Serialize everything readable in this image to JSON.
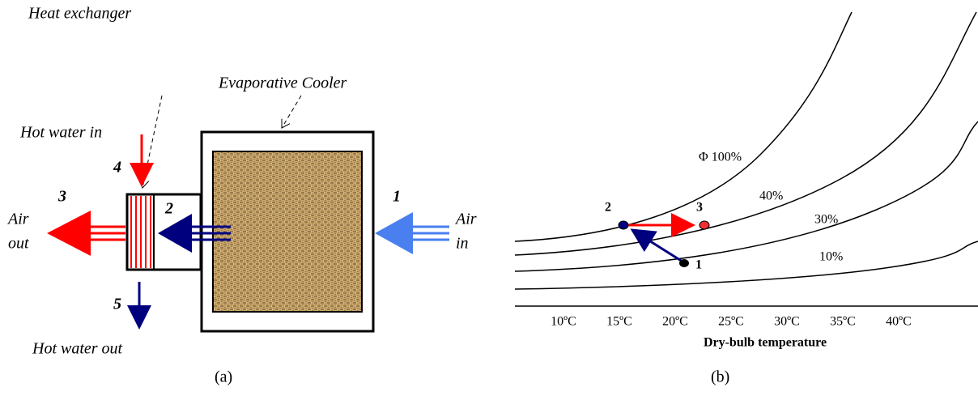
{
  "panel_a": {
    "heat_exchanger_label": "Heat exchanger",
    "cooler_label": "Evaporative Cooler",
    "hot_water_in": "Hot water in",
    "hot_water_out": "Hot water out",
    "air_out": [
      "Air",
      "out"
    ],
    "air_in": [
      "Air",
      "in"
    ],
    "stations": [
      "1",
      "2",
      "3",
      "4",
      "5"
    ],
    "caption": "(a)"
  },
  "panel_b": {
    "x_axis_label": "Dry-bulb temperature",
    "x_ticks": [
      "10ºC",
      "15ºC",
      "20ºC",
      "25ºC",
      "30ºC",
      "35ºC",
      "40ºC"
    ],
    "curves": [
      "Φ 100%",
      "40%",
      "30%",
      "10%"
    ],
    "points": [
      "1",
      "2",
      "3"
    ],
    "caption": "(b)"
  }
}
